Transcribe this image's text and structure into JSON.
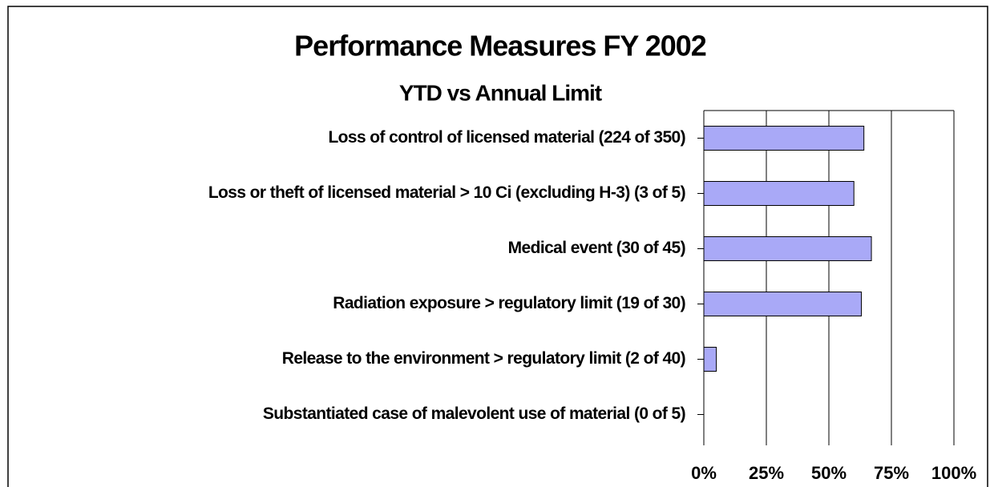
{
  "chart_data": {
    "type": "hbar",
    "title": "Performance Measures FY 2002",
    "subtitle": "YTD vs Annual Limit",
    "categories": [
      "Loss of control of licensed material (224 of 350)",
      "Loss or theft of licensed material > 10 Ci (excluding H-3) (3 of 5)",
      "Medical event (30 of 45)",
      "Radiation exposure > regulatory limit (19 of 30)",
      "Release to the environment > regulatory limit (2 of 40)",
      "Substantiated case of malevolent use of material (0 of 5)"
    ],
    "values": [
      64,
      60,
      67,
      63,
      5,
      0
    ],
    "color": "#a9a9f7",
    "xlim": [
      0,
      100
    ],
    "xticks": [
      {
        "value": 0,
        "label": "0%"
      },
      {
        "value": 25,
        "label": "25%"
      },
      {
        "value": 50,
        "label": "50%"
      },
      {
        "value": 75,
        "label": "75%"
      },
      {
        "value": 100,
        "label": "100%"
      }
    ],
    "grid": true
  }
}
